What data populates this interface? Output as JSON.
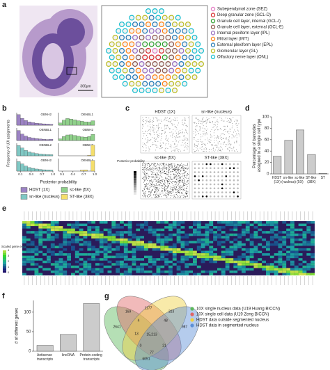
{
  "panel_labels": [
    "a",
    "b",
    "c",
    "d",
    "e",
    "f",
    "g"
  ],
  "a": {
    "legend": [
      "Subependymal zone (SEZ)",
      "Deep granular zone (GCL-D)",
      "Granule cell layer, internal (GCL-I)",
      "Granule cell layer, external (GCL-E)",
      "Internal plexiform layer (IPL)",
      "Mitral layer (M/T)",
      "External plexiform layer (EPL)",
      "Glomerular layer (GL)",
      "Olfactory nerve layer (ONL)"
    ],
    "colors": [
      "#e377c2",
      "#d62728",
      "#2ca02c",
      "#8c564b",
      "#9467bd",
      "#ff7f0e",
      "#1f77b4",
      "#bcbd22",
      "#17becf"
    ],
    "scale_bar": "300μm"
  },
  "c": {
    "titles": [
      "HDST (1X)",
      "sn-like (nucleus)",
      "sc-like (5X)",
      "ST-like (38X)"
    ],
    "colorbar_label": "Posterior probability"
  },
  "e": {
    "colorbar_label": "Scaled gene expression",
    "colorbar_ticks": [
      "0",
      "1",
      "2",
      "3",
      "4"
    ]
  },
  "g": {
    "legend": [
      "10X single nucleus data (U19 Huang BICCN)",
      "10X single cell data (U19 Zeng BICCN)",
      "HDST data outside segmented nucleus",
      "HDST data in segmented nucleus"
    ],
    "colors": [
      "#5cb85c",
      "#e06666",
      "#f0d040",
      "#5b8fd6"
    ],
    "regions": [
      "169",
      "1177",
      "323",
      "2641",
      "4",
      "48",
      "13",
      "987",
      "15,213",
      "0",
      "21",
      "77",
      "6051"
    ]
  },
  "chart_data": [
    {
      "type": "histogram",
      "ylabel": "Frequency of UJI assignments",
      "xlabel": "Posterior probability",
      "bins": [
        0,
        0.1,
        0.2,
        0.3,
        0.4,
        0.5,
        0.6,
        0.7,
        0.8,
        0.9,
        1
      ],
      "xlim": [
        0,
        1
      ],
      "xticks": [
        0.1,
        0.4,
        0.7,
        {
          "value": 1,
          "label": "1.0"
        }
      ],
      "ylim": [
        0,
        100
      ],
      "series": [
        {
          "name": "HDST (1X)",
          "color": "#9c83c4",
          "panels": [
            {
              "title": "OBNH2",
              "values": [
                95,
                62,
                42,
                30,
                23,
                18,
                15,
                12,
                10,
                8
              ]
            },
            {
              "title": "OBNBL1",
              "values": [
                90,
                58,
                40,
                28,
                22,
                17,
                14,
                11,
                9,
                12
              ]
            }
          ]
        },
        {
          "name": "sc-like (5X)",
          "color": "#8fd08a",
          "panels": [
            {
              "title": "OBNBL1",
              "values": [
                20,
                45,
                60,
                55,
                48,
                40,
                35,
                30,
                28,
                40
              ]
            },
            {
              "title": "OBNH2",
              "values": [
                15,
                35,
                50,
                52,
                45,
                38,
                32,
                30,
                35,
                55
              ]
            }
          ]
        },
        {
          "name": "sn-like (nucleus)",
          "color": "#7fc8c4",
          "panels": [
            {
              "title": "OBNBL2",
              "values": [
                92,
                70,
                48,
                35,
                26,
                20,
                16,
                13,
                11,
                10
              ]
            },
            {
              "title": "OBNH2",
              "values": [
                85,
                65,
                45,
                32,
                25,
                19,
                15,
                12,
                10,
                9
              ]
            }
          ]
        },
        {
          "name": "ST-like (38X)",
          "color": "#f4de6b",
          "panels": [
            {
              "title": "OBNH2",
              "values": [
                0,
                0,
                0,
                0,
                0,
                0,
                0,
                0,
                4,
                95
              ]
            },
            {
              "title": "OBNBL1",
              "values": [
                0,
                0,
                0,
                0,
                0,
                0,
                8,
                10,
                0,
                95
              ]
            }
          ]
        }
      ]
    },
    {
      "type": "bar",
      "ylabel": "Percentage of barcodes assigned to a single cell type",
      "categories": [
        "HDST (1X)",
        "sn-like (nucleus)",
        "sc-like (5X)",
        "ST-like (38X)",
        "ST"
      ],
      "values": [
        31,
        59,
        77,
        34,
        1
      ],
      "color": "#cccccc",
      "ylim": [
        0,
        100
      ],
      "yticks": [
        0,
        20,
        40,
        60,
        80,
        100
      ]
    },
    {
      "type": "bar",
      "ylabel": "# of different genes",
      "categories": [
        "Antisense transcripts",
        "lincRNA",
        "Protein-coding transcripts"
      ],
      "values": [
        15,
        43,
        122
      ],
      "color": "#cccccc",
      "ylim": [
        0,
        130
      ],
      "yticks": [
        0,
        50,
        100
      ]
    }
  ]
}
